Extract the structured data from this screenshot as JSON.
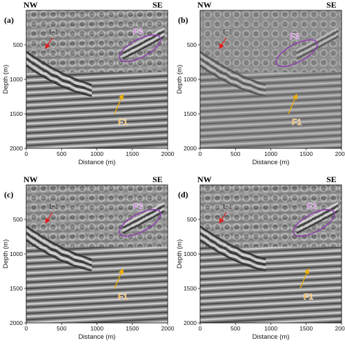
{
  "figure": {
    "directions": {
      "left": "NW",
      "right": "SE"
    },
    "x_axis": {
      "label": "Distance (m)",
      "ticks": [
        "0",
        "500",
        "1000",
        "1500",
        "2000"
      ]
    },
    "y_axis": {
      "label": "Depth (m)",
      "ticks": [
        "500",
        "1000",
        "1500",
        "2000"
      ]
    },
    "colors": {
      "l1": "#e02020",
      "f1": "#f0b000",
      "f3": "#9040b0",
      "f3_text": "#c060d0",
      "f1_text": "#f0a020"
    },
    "panels": [
      {
        "id": "a",
        "label": "(a)",
        "annotations": {
          "l1": "L1",
          "f1": "F1",
          "f3": "F3"
        }
      },
      {
        "id": "b",
        "label": "(b)",
        "annotations": {
          "l1": "L1",
          "f1": "F1",
          "f3": "F3"
        }
      },
      {
        "id": "c",
        "label": "(c)",
        "annotations": {
          "l1": "L1",
          "f1": "F1",
          "f3": "F3"
        }
      },
      {
        "id": "d",
        "label": "(d)",
        "annotations": {
          "l1": "L1",
          "f1": "F1",
          "f3": "F3"
        }
      }
    ]
  }
}
